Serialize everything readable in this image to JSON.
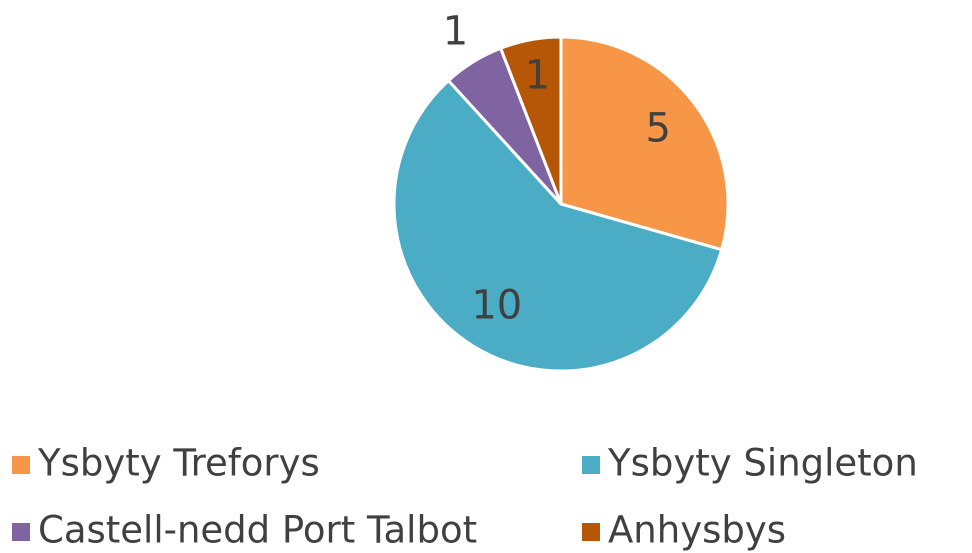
{
  "chart_data": {
    "type": "pie",
    "categories": [
      "Ysbyty Treforys",
      "Ysbyty Singleton",
      "Castell-nedd Port Talbot",
      "Anhysbys"
    ],
    "values": [
      5,
      10,
      1,
      1
    ],
    "colors": [
      "#F79646",
      "#4BACC6",
      "#8064A2",
      "#B65708"
    ],
    "legend": "bottom"
  }
}
